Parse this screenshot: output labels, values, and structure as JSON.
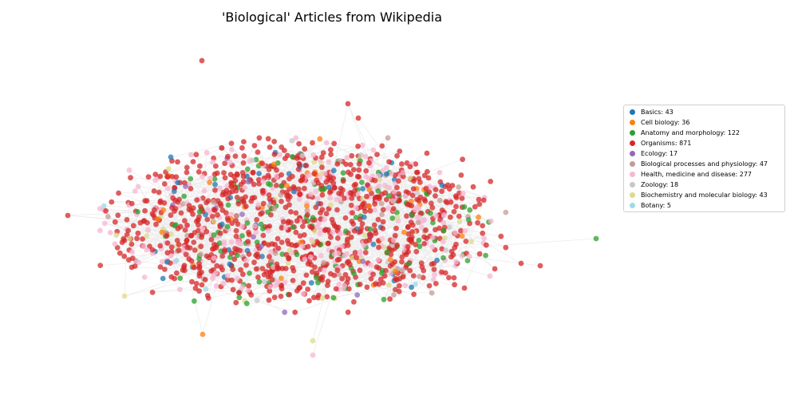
{
  "chart_data": {
    "type": "network",
    "title": "'Biological' Articles from Wikipedia",
    "node_alpha": 0.75,
    "edge_color": "#888888",
    "edge_alpha": 0.3,
    "legend_position": "right",
    "categories": [
      {
        "label": "Basics: 43",
        "count": 43,
        "color": "#1f77b4"
      },
      {
        "label": "Cell biology: 36",
        "count": 36,
        "color": "#ff7f0e"
      },
      {
        "label": "Anatomy and morphology: 122",
        "count": 122,
        "color": "#2ca02c"
      },
      {
        "label": "Organisms: 871",
        "count": 871,
        "color": "#d62728"
      },
      {
        "label": "Ecology: 17",
        "count": 17,
        "color": "#9467bd"
      },
      {
        "label": "Biological processes and physiology: 47",
        "count": 47,
        "color": "#c49c94"
      },
      {
        "label": "Health, medicine and disease: 277",
        "count": 277,
        "color": "#f7b6d2"
      },
      {
        "label": "Zoology: 18",
        "count": 18,
        "color": "#c7c7c7"
      },
      {
        "label": "Biochemistry and molecular biology: 43",
        "count": 43,
        "color": "#dbdb8d"
      },
      {
        "label": "Botany: 5",
        "count": 5,
        "color": "#9edae5"
      }
    ]
  }
}
